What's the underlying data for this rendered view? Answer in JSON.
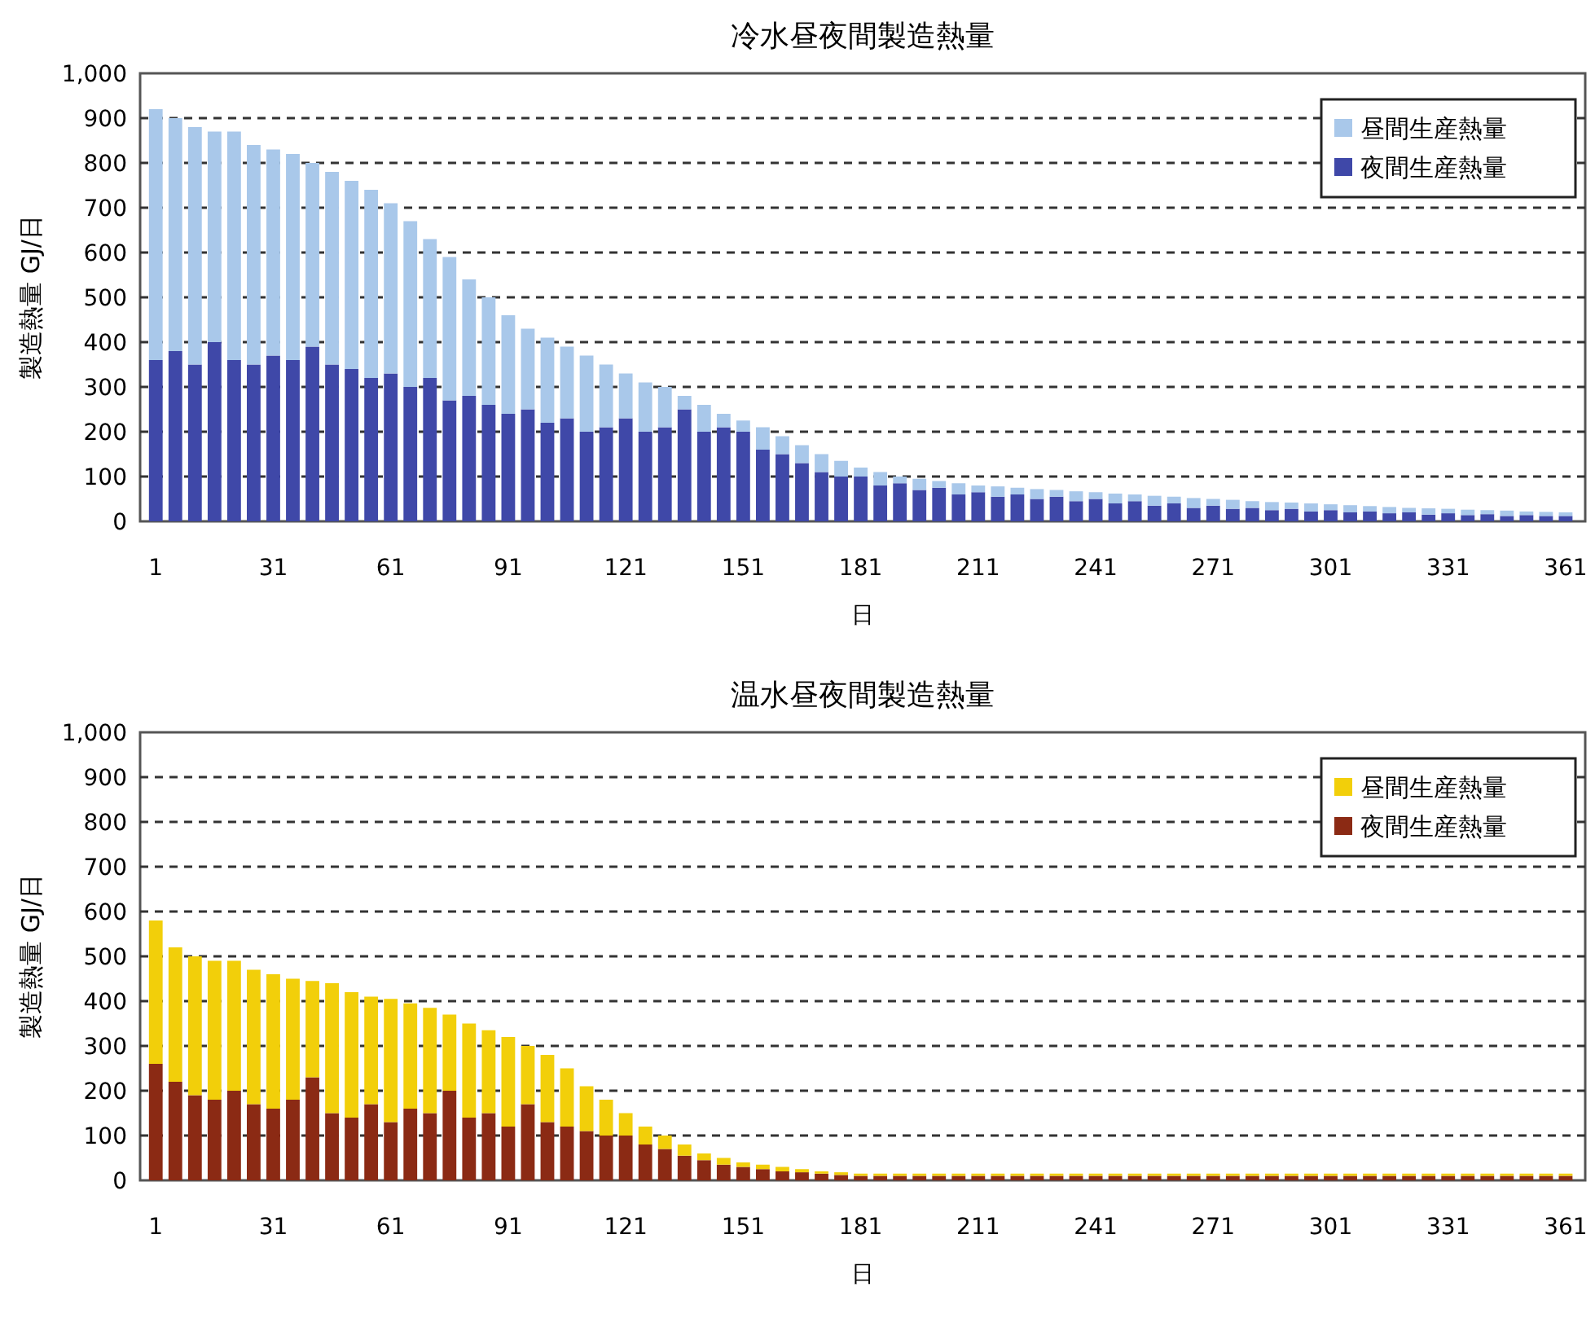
{
  "chart_data": [
    {
      "type": "bar",
      "title": "冷水昼夜間製造熱量",
      "xlabel": "日",
      "ylabel": "製造熱量 GJ/日",
      "stacked": true,
      "grid": "y",
      "legend": "top right",
      "x": [
        1,
        6,
        11,
        16,
        21,
        26,
        31,
        36,
        41,
        46,
        51,
        56,
        61,
        66,
        71,
        76,
        81,
        86,
        91,
        96,
        101,
        106,
        111,
        116,
        121,
        126,
        131,
        136,
        141,
        146,
        151,
        156,
        161,
        166,
        171,
        176,
        181,
        186,
        191,
        196,
        201,
        206,
        211,
        216,
        221,
        226,
        231,
        236,
        241,
        246,
        251,
        256,
        261,
        266,
        271,
        276,
        281,
        286,
        291,
        296,
        301,
        306,
        311,
        316,
        321,
        326,
        331,
        336,
        341,
        346,
        351,
        356,
        361
      ],
      "xlim": [
        -3,
        366
      ],
      "xticks": [
        1,
        31,
        61,
        91,
        121,
        151,
        181,
        211,
        241,
        271,
        301,
        331,
        361
      ],
      "ylim": [
        0,
        1000
      ],
      "yticks": [
        0,
        100,
        200,
        300,
        400,
        500,
        600,
        700,
        800,
        900,
        {
          "value": 1000,
          "label": "1,000"
        }
      ],
      "series": [
        {
          "name": "夜間生産熱量",
          "color": "#3f48a8",
          "values": [
            360,
            380,
            350,
            400,
            360,
            350,
            370,
            360,
            390,
            350,
            340,
            320,
            330,
            300,
            320,
            270,
            280,
            260,
            240,
            250,
            220,
            230,
            200,
            210,
            230,
            200,
            210,
            250,
            200,
            210,
            200,
            160,
            150,
            130,
            110,
            100,
            100,
            80,
            85,
            70,
            75,
            60,
            65,
            55,
            60,
            50,
            55,
            45,
            50,
            40,
            45,
            35,
            40,
            30,
            35,
            28,
            30,
            25,
            28,
            22,
            25,
            20,
            22,
            18,
            20,
            15,
            18,
            14,
            16,
            12,
            14,
            12,
            12
          ]
        },
        {
          "name": "昼間生産熱量",
          "color": "#a9c8ea",
          "values": [
            560,
            520,
            530,
            470,
            510,
            490,
            460,
            460,
            410,
            430,
            420,
            420,
            380,
            370,
            310,
            320,
            260,
            240,
            220,
            180,
            190,
            160,
            170,
            140,
            100,
            110,
            90,
            30,
            60,
            30,
            25,
            50,
            40,
            40,
            40,
            35,
            20,
            30,
            15,
            25,
            15,
            25,
            15,
            23,
            15,
            22,
            15,
            22,
            15,
            22,
            15,
            22,
            15,
            22,
            15,
            20,
            15,
            18,
            14,
            18,
            13,
            16,
            12,
            14,
            10,
            14,
            10,
            12,
            9,
            12,
            8,
            9,
            8
          ]
        }
      ]
    },
    {
      "type": "bar",
      "title": "温水昼夜間製造熱量",
      "xlabel": "日",
      "ylabel": "製造熱量 GJ/日",
      "stacked": true,
      "grid": "y",
      "legend": "top right",
      "x": [
        1,
        6,
        11,
        16,
        21,
        26,
        31,
        36,
        41,
        46,
        51,
        56,
        61,
        66,
        71,
        76,
        81,
        86,
        91,
        96,
        101,
        106,
        111,
        116,
        121,
        126,
        131,
        136,
        141,
        146,
        151,
        156,
        161,
        166,
        171,
        176,
        181,
        186,
        191,
        196,
        201,
        206,
        211,
        216,
        221,
        226,
        231,
        236,
        241,
        246,
        251,
        256,
        261,
        266,
        271,
        276,
        281,
        286,
        291,
        296,
        301,
        306,
        311,
        316,
        321,
        326,
        331,
        336,
        341,
        346,
        351,
        356,
        361
      ],
      "xlim": [
        -3,
        366
      ],
      "xticks": [
        1,
        31,
        61,
        91,
        121,
        151,
        181,
        211,
        241,
        271,
        301,
        331,
        361
      ],
      "ylim": [
        0,
        1000
      ],
      "yticks": [
        0,
        100,
        200,
        300,
        400,
        500,
        600,
        700,
        800,
        900,
        {
          "value": 1000,
          "label": "1,000"
        }
      ],
      "series": [
        {
          "name": "夜間生産熱量",
          "color": "#8b2a14",
          "values": [
            260,
            220,
            190,
            180,
            200,
            170,
            160,
            180,
            230,
            150,
            140,
            170,
            130,
            160,
            150,
            200,
            140,
            150,
            120,
            170,
            130,
            120,
            110,
            100,
            100,
            80,
            70,
            55,
            45,
            35,
            30,
            25,
            20,
            18,
            15,
            12,
            10,
            10,
            10,
            10,
            10,
            10,
            10,
            10,
            10,
            10,
            10,
            10,
            10,
            10,
            10,
            10,
            10,
            10,
            10,
            10,
            10,
            10,
            10,
            10,
            10,
            10,
            10,
            10,
            10,
            10,
            10,
            10,
            10,
            10,
            10,
            10,
            10
          ]
        },
        {
          "name": "昼間生産熱量",
          "color": "#f2cf0a",
          "values": [
            320,
            300,
            310,
            310,
            290,
            300,
            300,
            270,
            215,
            290,
            280,
            240,
            275,
            235,
            235,
            170,
            210,
            185,
            200,
            130,
            150,
            130,
            100,
            80,
            50,
            40,
            30,
            25,
            15,
            15,
            10,
            10,
            10,
            7,
            5,
            6,
            5,
            5,
            5,
            5,
            5,
            5,
            5,
            5,
            5,
            5,
            5,
            5,
            5,
            5,
            5,
            5,
            5,
            5,
            5,
            5,
            5,
            5,
            5,
            5,
            5,
            5,
            5,
            5,
            5,
            5,
            5,
            5,
            5,
            5,
            5,
            5,
            5
          ]
        }
      ]
    }
  ]
}
